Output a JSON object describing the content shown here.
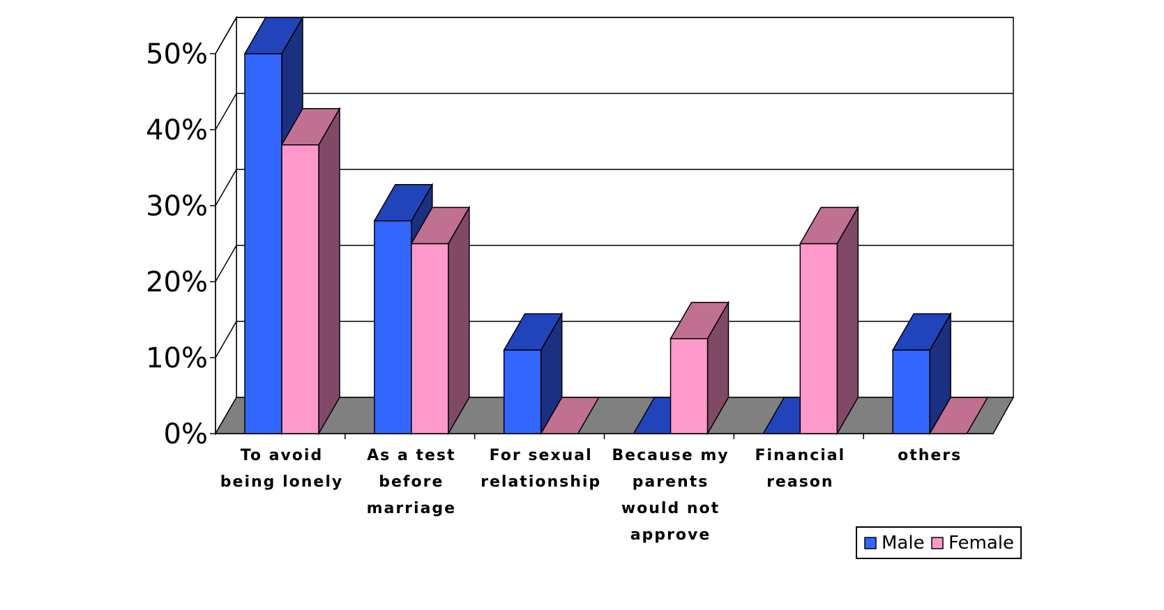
{
  "chart_data": {
    "type": "bar",
    "categories": [
      [
        "To avoid",
        "being lonely"
      ],
      [
        "As a test",
        "before",
        "marriage"
      ],
      [
        "For sexual",
        "relationship"
      ],
      [
        "Because my",
        "parents",
        "would not",
        "approve"
      ],
      [
        "Financial",
        "reason"
      ],
      [
        "others"
      ]
    ],
    "series": [
      {
        "name": "Male",
        "values": [
          50,
          28,
          11,
          0,
          0,
          11
        ]
      },
      {
        "name": "Female",
        "values": [
          38,
          25,
          0,
          12.5,
          25,
          0
        ]
      }
    ],
    "ylim": [
      0,
      50
    ],
    "yticks": [
      "0%",
      "10%",
      "20%",
      "30%",
      "40%",
      "50%"
    ],
    "grid": true,
    "legend_position": "bottom-right",
    "colors": {
      "male_front": "#3366ff",
      "male_top": "#2244bb",
      "male_side": "#1b3080",
      "female_front": "#ff99cc",
      "female_top": "#c07090",
      "female_side": "#804a66",
      "floor": "#808080"
    }
  }
}
